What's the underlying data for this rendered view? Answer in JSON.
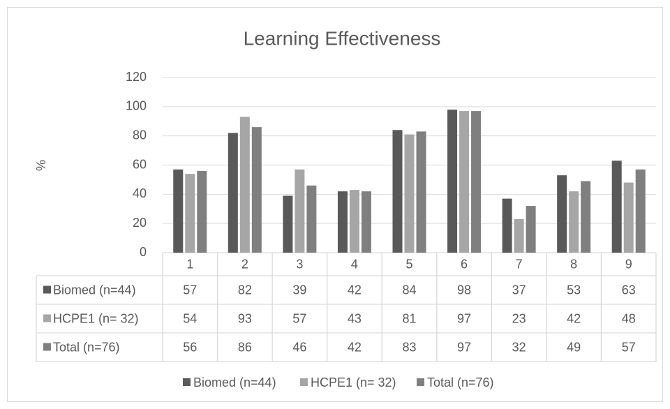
{
  "chart_data": {
    "type": "bar",
    "title": "Learning Effectiveness",
    "y_label": "%",
    "categories": [
      "1",
      "2",
      "3",
      "4",
      "5",
      "6",
      "7",
      "8",
      "9"
    ],
    "series": [
      {
        "name": "Biomed (n=44)",
        "color": "#595959",
        "values": [
          57,
          82,
          39,
          42,
          84,
          98,
          37,
          53,
          63
        ]
      },
      {
        "name": "HCPE1 (n= 32)",
        "color": "#a6a6a6",
        "values": [
          54,
          93,
          57,
          43,
          81,
          97,
          23,
          42,
          48
        ]
      },
      {
        "name": "Total (n=76)",
        "color": "#7f7f7f",
        "values": [
          56,
          86,
          46,
          42,
          83,
          97,
          32,
          49,
          57
        ]
      }
    ],
    "ylim": [
      0,
      120
    ],
    "yticks": [
      0,
      20,
      40,
      60,
      80,
      100,
      120
    ],
    "grid": true,
    "legend": "bottom",
    "data_table": true
  }
}
